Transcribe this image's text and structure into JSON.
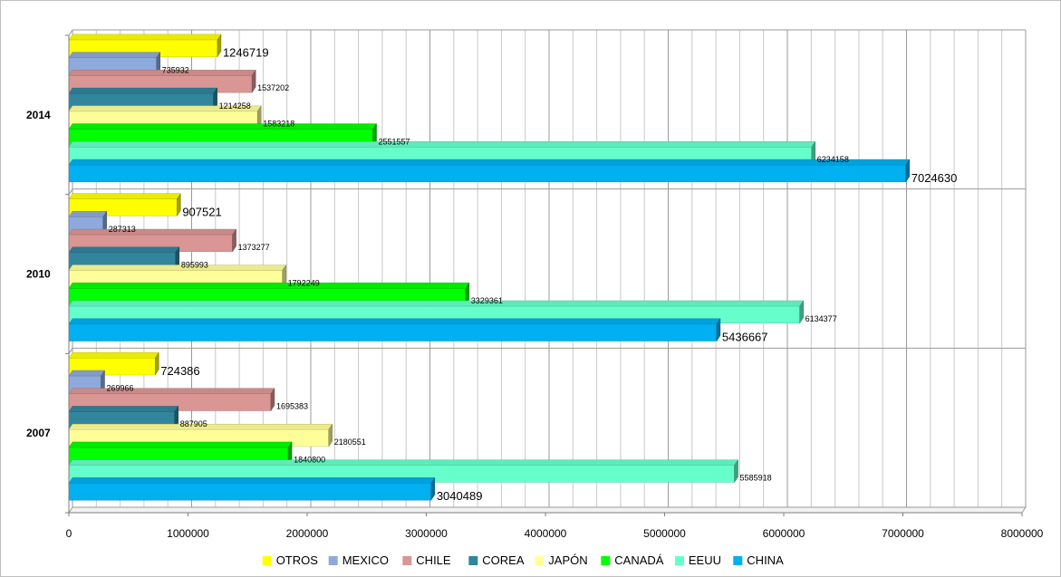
{
  "chart_data": {
    "type": "bar",
    "orientation": "horizontal",
    "categories": [
      "2007",
      "2010",
      "2014"
    ],
    "series": [
      {
        "name": "OTROS",
        "color": "#ffff00",
        "values": [
          724386,
          907521,
          1246719
        ]
      },
      {
        "name": "MEXICO",
        "color": "#8ea9db",
        "values": [
          269966,
          287313,
          735932
        ]
      },
      {
        "name": "CHILE",
        "color": "#d99694",
        "values": [
          1695383,
          1373277,
          1537202
        ]
      },
      {
        "name": "COREA",
        "color": "#31859c",
        "values": [
          887905,
          895993,
          1214258
        ]
      },
      {
        "name": "JAPÓN",
        "color": "#ffff99",
        "values": [
          2180551,
          1792249,
          1583218
        ]
      },
      {
        "name": "CANADÁ",
        "color": "#00ff00",
        "values": [
          1840800,
          3329361,
          2551557
        ]
      },
      {
        "name": "EEUU",
        "color": "#66ffcc",
        "values": [
          5585918,
          6134377,
          6234158
        ]
      },
      {
        "name": "CHINA",
        "color": "#00b0f0",
        "values": [
          3040489,
          5436667,
          7024630
        ]
      }
    ],
    "data_labels": {
      "OTROS": [
        "724386",
        "907521",
        "1246719"
      ],
      "MEXICO": [
        "269966",
        "287313",
        "735932"
      ],
      "CHILE": [
        "1695383",
        "1373277",
        "1537202"
      ],
      "COREA": [
        "887905",
        "895993",
        "1214258"
      ],
      "JAPÓN": [
        "2180551",
        "1792249",
        "1583218"
      ],
      "CANADÁ": [
        "1840800",
        "3329361",
        "2551557"
      ],
      "EEUU": [
        "5585918",
        "6134377",
        "6234158"
      ],
      "CHINA": [
        "3040489",
        "5436667",
        "7024630"
      ]
    },
    "xlim": [
      0,
      8000000
    ],
    "x_ticks": [
      "0",
      "1000000",
      "2000000",
      "3000000",
      "4000000",
      "5000000",
      "6000000",
      "7000000",
      "8000000"
    ],
    "grid": true,
    "minor_gridlines": true,
    "legend_position": "bottom",
    "title": "",
    "xlabel": "",
    "ylabel": ""
  }
}
